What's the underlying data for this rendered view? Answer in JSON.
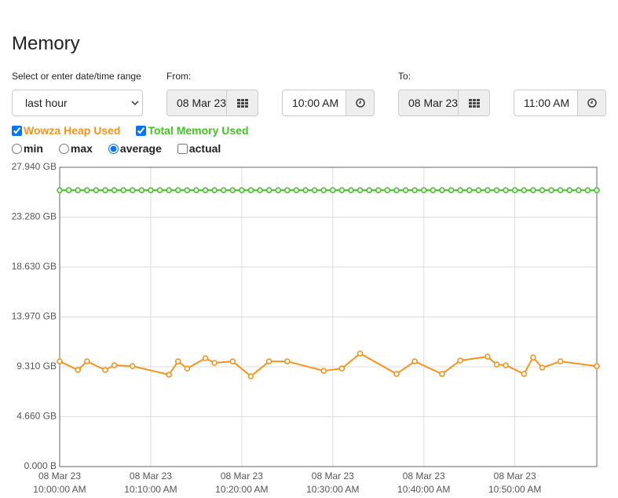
{
  "header": {
    "title": "Memory"
  },
  "range": {
    "label": "Select or enter date/time range",
    "select": "last hour",
    "from_label": "From:",
    "from_date": "08 Mar 23",
    "from_time": "10:00 AM",
    "to_label": "To:",
    "to_date": "08 Mar 23",
    "to_time": "11:00 AM"
  },
  "modes": {
    "options": [
      "min",
      "max",
      "average"
    ],
    "selected": "average"
  },
  "actual": "actual",
  "chart_data": {
    "type": "line",
    "xlim": [
      "10:00",
      "10:59"
    ],
    "xticks": [
      {
        "value": "10:00",
        "label": [
          "08 Mar 23",
          "10:00:00 AM"
        ]
      },
      {
        "value": "10:10",
        "label": [
          "08 Mar 23",
          "10:10:00 AM"
        ]
      },
      {
        "value": "10:20",
        "label": [
          "08 Mar 23",
          "10:20:00 AM"
        ]
      },
      {
        "value": "10:30",
        "label": [
          "08 Mar 23",
          "10:30:00 AM"
        ]
      },
      {
        "value": "10:40",
        "label": [
          "08 Mar 23",
          "10:40:00 AM"
        ]
      },
      {
        "value": "10:50",
        "label": [
          "08 Mar 23",
          "10:50:00 AM"
        ]
      }
    ],
    "ylim": [
      0,
      27.94
    ],
    "yticks": [
      {
        "value": 0,
        "label": "0.000 B"
      },
      {
        "value": 4.66,
        "label": "4.660 GB"
      },
      {
        "value": 9.31,
        "label": "9.310 GB"
      },
      {
        "value": 13.97,
        "label": "13.970 GB"
      },
      {
        "value": 18.63,
        "label": "18.630 GB"
      },
      {
        "value": 23.28,
        "label": "23.280 GB"
      },
      {
        "value": 27.94,
        "label": "27.940 GB"
      }
    ],
    "grid": true,
    "series": [
      {
        "name": "Wowza Heap Used",
        "color": "#f7941d",
        "x": [
          "10:00",
          "10:02",
          "10:03",
          "10:05",
          "10:06",
          "10:08",
          "10:12",
          "10:13",
          "10:14",
          "10:16",
          "10:17",
          "10:19",
          "10:21",
          "10:23",
          "10:25",
          "10:29",
          "10:31",
          "10:33",
          "10:37",
          "10:39",
          "10:42",
          "10:44",
          "10:47",
          "10:48",
          "10:49",
          "10:51",
          "10:52",
          "10:53",
          "10:55",
          "10:59"
        ],
        "values": [
          9.82,
          9.02,
          9.82,
          9.02,
          9.46,
          9.38,
          8.58,
          9.82,
          9.16,
          10.12,
          9.68,
          9.82,
          8.43,
          9.82,
          9.82,
          8.94,
          9.16,
          10.56,
          8.65,
          9.82,
          8.65,
          9.9,
          10.26,
          9.53,
          9.46,
          8.65,
          10.19,
          9.24,
          9.82,
          9.38
        ]
      },
      {
        "name": "Total Memory Used",
        "color": "#44c425",
        "x": [
          "10:00",
          "10:01",
          "10:02",
          "10:03",
          "10:04",
          "10:05",
          "10:06",
          "10:07",
          "10:08",
          "10:09",
          "10:10",
          "10:11",
          "10:12",
          "10:13",
          "10:14",
          "10:15",
          "10:16",
          "10:17",
          "10:18",
          "10:19",
          "10:20",
          "10:21",
          "10:22",
          "10:23",
          "10:24",
          "10:25",
          "10:26",
          "10:27",
          "10:28",
          "10:29",
          "10:30",
          "10:31",
          "10:32",
          "10:33",
          "10:34",
          "10:35",
          "10:36",
          "10:37",
          "10:38",
          "10:39",
          "10:40",
          "10:41",
          "10:42",
          "10:43",
          "10:44",
          "10:45",
          "10:46",
          "10:47",
          "10:48",
          "10:49",
          "10:50",
          "10:51",
          "10:52",
          "10:53",
          "10:54",
          "10:55",
          "10:56",
          "10:57",
          "10:58",
          "10:59"
        ],
        "values": [
          25.8,
          25.8,
          25.8,
          25.8,
          25.8,
          25.8,
          25.8,
          25.8,
          25.8,
          25.8,
          25.8,
          25.8,
          25.8,
          25.8,
          25.8,
          25.8,
          25.8,
          25.8,
          25.8,
          25.8,
          25.8,
          25.8,
          25.8,
          25.8,
          25.8,
          25.8,
          25.8,
          25.8,
          25.8,
          25.8,
          25.8,
          25.8,
          25.8,
          25.8,
          25.8,
          25.8,
          25.8,
          25.8,
          25.8,
          25.8,
          25.8,
          25.8,
          25.8,
          25.8,
          25.8,
          25.8,
          25.8,
          25.8,
          25.8,
          25.8,
          25.8,
          25.8,
          25.8,
          25.8,
          25.8,
          25.8,
          25.8,
          25.8,
          25.8,
          25.8
        ]
      }
    ]
  }
}
